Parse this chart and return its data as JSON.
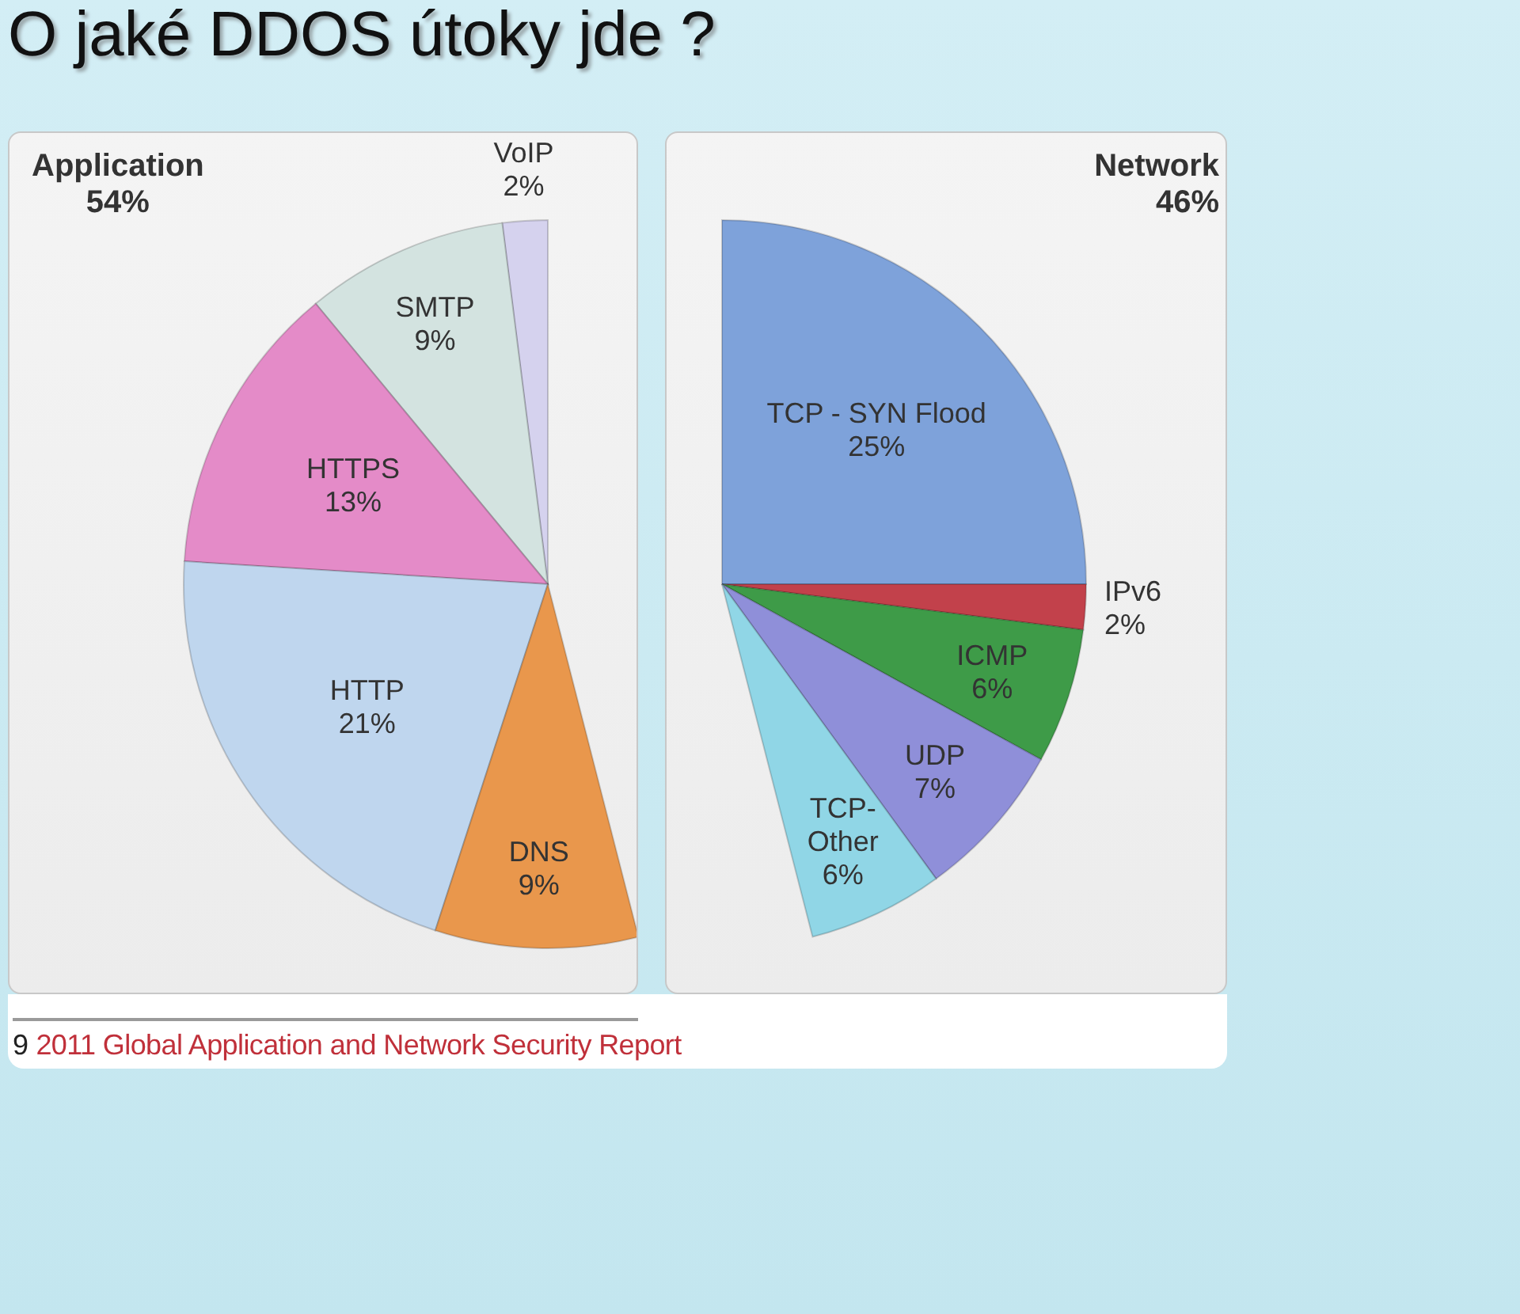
{
  "chart_data": [
    {
      "type": "other",
      "title": "O jaké DDOS útoky jde ?"
    },
    {
      "type": "pie",
      "title": "Application",
      "subtitle": "54%",
      "categories": [
        "VoIP",
        "SMTP",
        "HTTPS",
        "HTTP",
        "DNS"
      ],
      "values": [
        2,
        9,
        13,
        21,
        9
      ],
      "colors": [
        "#d5d2ee",
        "#d3e3e0",
        "#e48bc8",
        "#bfd6ee",
        "#e9974c"
      ],
      "value_labels": [
        "2%",
        "9%",
        "13%",
        "21%",
        "9%"
      ]
    },
    {
      "type": "pie",
      "title": "Network",
      "subtitle": "46%",
      "categories": [
        "TCP - SYN Flood",
        "IPv6",
        "ICMP",
        "UDP",
        "TCP-Other"
      ],
      "values": [
        25,
        2,
        6,
        7,
        6
      ],
      "colors": [
        "#7ea2da",
        "#c2414b",
        "#3e9b48",
        "#8f8fd9",
        "#90d6e6"
      ],
      "value_labels": [
        "25%",
        "2%",
        "6%",
        "7%",
        "6%"
      ]
    },
    {
      "type": "other",
      "annotations": [
        "9",
        "2011 Global Application and Network Security Report"
      ]
    }
  ]
}
